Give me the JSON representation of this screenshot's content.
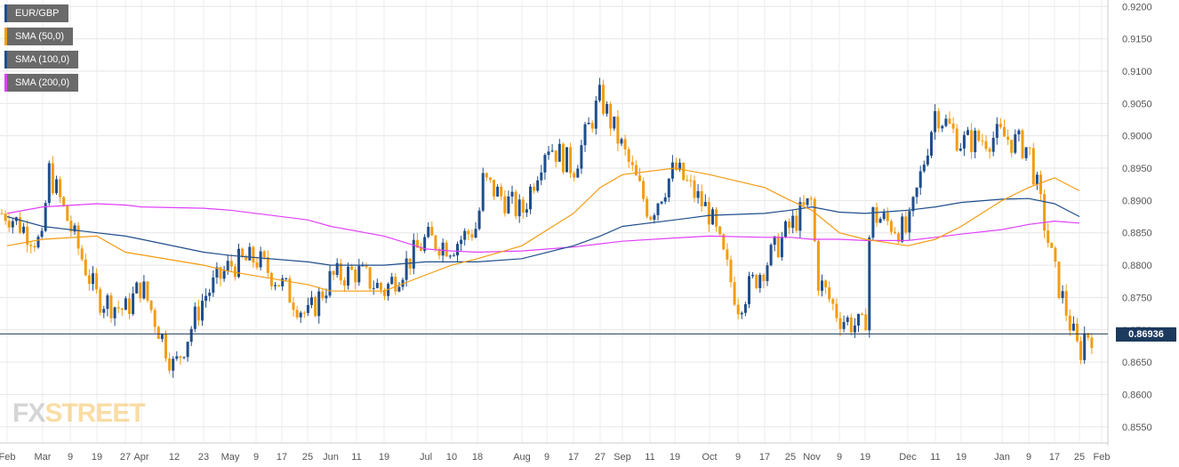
{
  "legend": [
    {
      "label": "EUR/GBP",
      "color": "#1f4e8c"
    },
    {
      "label": "SMA (50,0)",
      "color": "#f39c12"
    },
    {
      "label": "SMA (100,0)",
      "color": "#1f4e8c"
    },
    {
      "label": "SMA (200,0)",
      "color": "#e040fb"
    }
  ],
  "logo": {
    "fx": "FX",
    "street": "STREET"
  },
  "last_price_label": "0.86936",
  "chart_data": {
    "type": "candlestick",
    "title": "",
    "series_name": "EUR/GBP",
    "colors": {
      "up": "#1f4e8c",
      "down": "#f39c12",
      "sma50": "#f39c12",
      "sma100": "#1f4e8c",
      "sma200": "#e040fb",
      "price_line": "#1c3a5e"
    },
    "ylim": [
      0.8525,
      0.921
    ],
    "y_ticks": [
      "0.9200",
      "0.9150",
      "0.9100",
      "0.9050",
      "0.9000",
      "0.8950",
      "0.8900",
      "0.8850",
      "0.8800",
      "0.8750",
      "0.8700",
      "0.8650",
      "0.8600",
      "0.8550"
    ],
    "x_ticks": [
      "Feb",
      "Mar",
      "9",
      "19",
      "27",
      "Apr",
      "12",
      "23",
      "May",
      "9",
      "17",
      "25",
      "Jun",
      "11",
      "19",
      "Jul",
      "10",
      "18",
      "Aug",
      "9",
      "17",
      "27",
      "Sep",
      "11",
      "19",
      "Oct",
      "9",
      "17",
      "25",
      "Nov",
      "9",
      "19",
      "Dec",
      "11",
      "19",
      "Jan",
      "9",
      "17",
      "25",
      "Feb"
    ],
    "last_price": 0.86936,
    "grid": true,
    "price_path": [
      [
        "Feb",
        0.888
      ],
      [
        "Mar",
        0.883
      ],
      [
        "Mar",
        0.895
      ],
      [
        "19",
        0.875
      ],
      [
        "27",
        0.873
      ],
      [
        "Apr",
        0.877
      ],
      [
        "12",
        0.864
      ],
      [
        "23",
        0.875
      ],
      [
        "May",
        0.88
      ],
      [
        "9",
        0.881
      ],
      [
        "17",
        0.877
      ],
      [
        "25",
        0.872
      ],
      [
        "Jun",
        0.878
      ],
      [
        "11",
        0.879
      ],
      [
        "19",
        0.876
      ],
      [
        "Jul",
        0.884
      ],
      [
        "10",
        0.883
      ],
      [
        "18",
        0.886
      ],
      [
        "18",
        0.893
      ],
      [
        "Aug",
        0.888
      ],
      [
        "9",
        0.899
      ],
      [
        "17",
        0.895
      ],
      [
        "27",
        0.906
      ],
      [
        "Sep",
        0.898
      ],
      [
        "11",
        0.888
      ],
      [
        "19",
        0.895
      ],
      [
        "Oct",
        0.888
      ],
      [
        "9",
        0.874
      ],
      [
        "17",
        0.88
      ],
      [
        "25",
        0.886
      ],
      [
        "Nov",
        0.89
      ],
      [
        "Nov",
        0.878
      ],
      [
        "9",
        0.872
      ],
      [
        "19",
        0.87
      ],
      [
        "19",
        0.888
      ],
      [
        "Dec",
        0.885
      ],
      [
        "11",
        0.904
      ],
      [
        "19",
        0.899
      ],
      [
        "Jan",
        0.9
      ],
      [
        "9",
        0.898
      ],
      [
        "17",
        0.879
      ],
      [
        "25",
        0.866
      ],
      [
        "25",
        0.8694
      ]
    ],
    "sma50": [
      [
        "Feb",
        0.883
      ],
      [
        "Mar",
        0.884
      ],
      [
        "19",
        0.8845
      ],
      [
        "27",
        0.882
      ],
      [
        "23",
        0.88
      ],
      [
        "May",
        0.879
      ],
      [
        "25",
        0.877
      ],
      [
        "Jun",
        0.876
      ],
      [
        "19",
        0.876
      ],
      [
        "Jul",
        0.8785
      ],
      [
        "10",
        0.88
      ],
      [
        "18",
        0.881
      ],
      [
        "Aug",
        0.883
      ],
      [
        "17",
        0.888
      ],
      [
        "27",
        0.892
      ],
      [
        "Sep",
        0.894
      ],
      [
        "19",
        0.895
      ],
      [
        "Oct",
        0.894
      ],
      [
        "17",
        0.892
      ],
      [
        "25",
        0.89
      ],
      [
        "Nov",
        0.8885
      ],
      [
        "9",
        0.885
      ],
      [
        "19",
        0.884
      ],
      [
        "Dec",
        0.883
      ],
      [
        "11",
        0.884
      ],
      [
        "19",
        0.886
      ],
      [
        "Jan",
        0.89
      ],
      [
        "9",
        0.892
      ],
      [
        "17",
        0.8935
      ],
      [
        "25",
        0.8915
      ]
    ],
    "sma100": [
      [
        "Feb",
        0.8875
      ],
      [
        "Mar",
        0.886
      ],
      [
        "19",
        0.885
      ],
      [
        "27",
        0.8845
      ],
      [
        "Apr",
        0.884
      ],
      [
        "23",
        0.882
      ],
      [
        "May",
        0.8815
      ],
      [
        "25",
        0.8805
      ],
      [
        "Jun",
        0.88
      ],
      [
        "19",
        0.88
      ],
      [
        "Jul",
        0.8805
      ],
      [
        "18",
        0.8805
      ],
      [
        "Aug",
        0.881
      ],
      [
        "17",
        0.883
      ],
      [
        "27",
        0.8845
      ],
      [
        "Sep",
        0.886
      ],
      [
        "19",
        0.887
      ],
      [
        "Oct",
        0.8877
      ],
      [
        "17",
        0.888
      ],
      [
        "25",
        0.8885
      ],
      [
        "Nov",
        0.889
      ],
      [
        "9",
        0.8882
      ],
      [
        "19",
        0.888
      ],
      [
        "Dec",
        0.8885
      ],
      [
        "11",
        0.889
      ],
      [
        "19",
        0.8897
      ],
      [
        "Jan",
        0.8902
      ],
      [
        "9",
        0.8903
      ],
      [
        "17",
        0.8895
      ],
      [
        "25",
        0.8875
      ]
    ],
    "sma200": [
      [
        "Feb",
        0.888
      ],
      [
        "Mar",
        0.889
      ],
      [
        "19",
        0.8895
      ],
      [
        "27",
        0.8893
      ],
      [
        "Apr",
        0.889
      ],
      [
        "23",
        0.8888
      ],
      [
        "May",
        0.8885
      ],
      [
        "25",
        0.887
      ],
      [
        "Jun",
        0.886
      ],
      [
        "19",
        0.8845
      ],
      [
        "Jul",
        0.8825
      ],
      [
        "10",
        0.8822
      ],
      [
        "18",
        0.882
      ],
      [
        "Aug",
        0.8822
      ],
      [
        "17",
        0.8828
      ],
      [
        "27",
        0.8833
      ],
      [
        "Sep",
        0.8837
      ],
      [
        "19",
        0.8842
      ],
      [
        "Oct",
        0.8845
      ],
      [
        "17",
        0.8843
      ],
      [
        "25",
        0.8843
      ],
      [
        "Nov",
        0.884
      ],
      [
        "9",
        0.884
      ],
      [
        "19",
        0.8838
      ],
      [
        "Dec",
        0.8838
      ],
      [
        "11",
        0.8843
      ],
      [
        "19",
        0.8848
      ],
      [
        "Jan",
        0.8855
      ],
      [
        "9",
        0.8863
      ],
      [
        "17",
        0.8868
      ],
      [
        "25",
        0.8865
      ]
    ],
    "period_extremes": {
      "high": 0.91,
      "low": 0.862
    }
  }
}
